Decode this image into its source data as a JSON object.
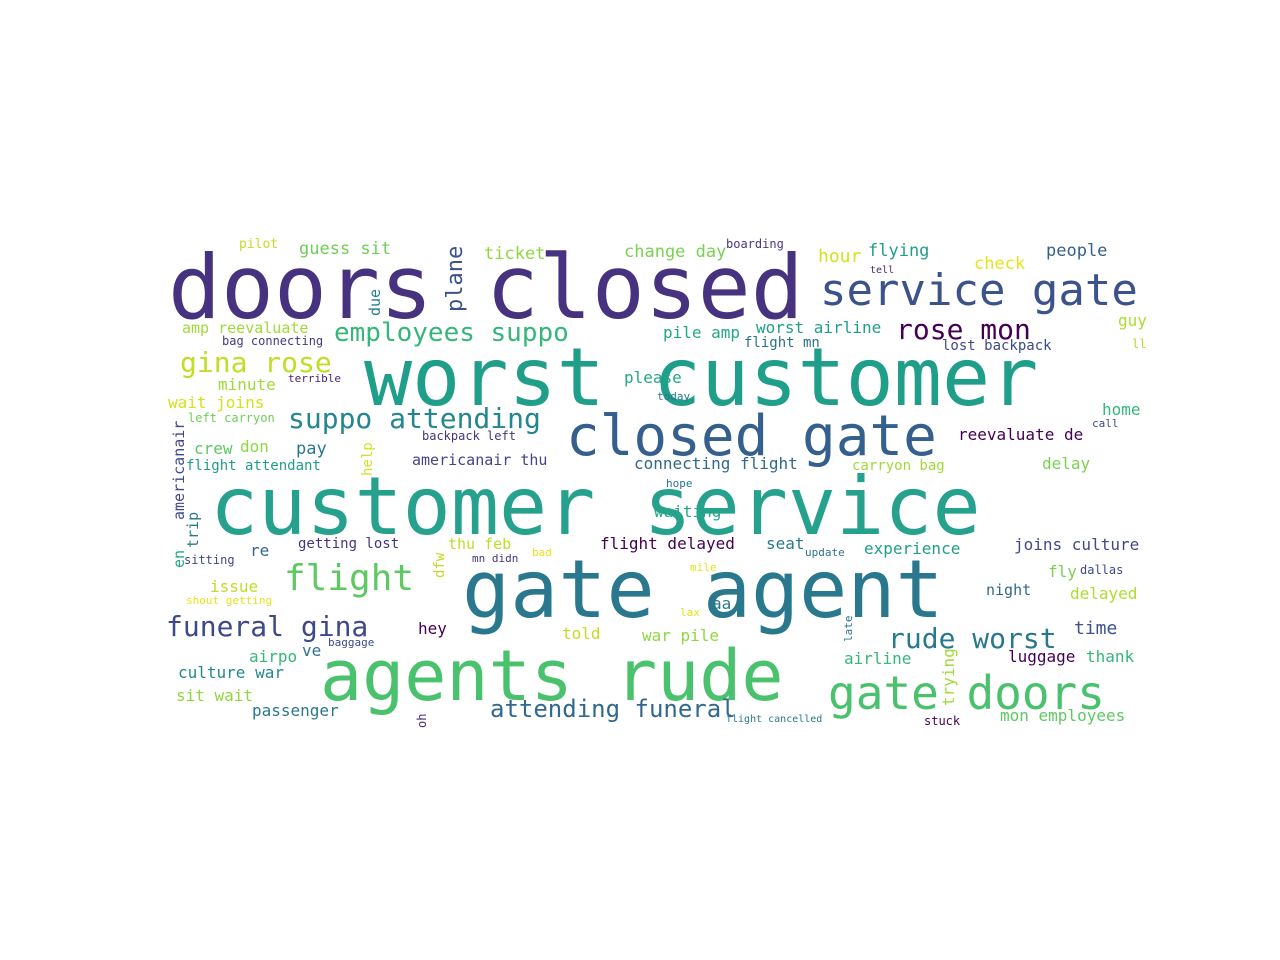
{
  "words": [
    {
      "text": "doors closed",
      "color": "#46327e"
    },
    {
      "text": "worst customer",
      "color": "#1f9e89"
    },
    {
      "text": "customer service",
      "color": "#25a18e"
    },
    {
      "text": "gate agent",
      "color": "#2a788e"
    },
    {
      "text": "agents rude",
      "color": "#4ac16d"
    },
    {
      "text": "closed gate",
      "color": "#355f8d"
    },
    {
      "text": "service gate",
      "color": "#3b528b"
    },
    {
      "text": "gate doors",
      "color": "#4ac16d"
    },
    {
      "text": "flight",
      "color": "#5ec962"
    },
    {
      "text": "funeral gina",
      "color": "#3e4989"
    },
    {
      "text": "suppo attending",
      "color": "#24868e"
    },
    {
      "text": "employees suppo",
      "color": "#35b779"
    },
    {
      "text": "gina rose",
      "color": "#bddf26"
    },
    {
      "text": "rose mon",
      "color": "#440154"
    },
    {
      "text": "rude worst",
      "color": "#2a788e"
    },
    {
      "text": "attending funeral",
      "color": "#31688e"
    },
    {
      "text": "plane",
      "color": "#3b528b"
    },
    {
      "text": "pilot",
      "color": "#bddf26"
    },
    {
      "text": "guess sit",
      "color": "#6ece58"
    },
    {
      "text": "ticket",
      "color": "#90d743"
    },
    {
      "text": "change day",
      "color": "#7ad151"
    },
    {
      "text": "boarding",
      "color": "#443983"
    },
    {
      "text": "hour",
      "color": "#d2e21b"
    },
    {
      "text": "flying",
      "color": "#1f9e89"
    },
    {
      "text": "tell",
      "color": "#482878"
    },
    {
      "text": "check",
      "color": "#e5e419"
    },
    {
      "text": "people",
      "color": "#355f8d"
    },
    {
      "text": "amp reevaluate",
      "color": "#a0da39"
    },
    {
      "text": "bag connecting",
      "color": "#443983"
    },
    {
      "text": "due",
      "color": "#277f8e"
    },
    {
      "text": "pile amp",
      "color": "#22a884"
    },
    {
      "text": "worst airline",
      "color": "#1f9e89"
    },
    {
      "text": "flight mn",
      "color": "#2c728e"
    },
    {
      "text": "lost backpack",
      "color": "#3e4989"
    },
    {
      "text": "guy",
      "color": "#addc30"
    },
    {
      "text": "ll",
      "color": "#addc30"
    },
    {
      "text": "minute",
      "color": "#a0da39"
    },
    {
      "text": "terrible",
      "color": "#481f70"
    },
    {
      "text": "please",
      "color": "#22a884"
    },
    {
      "text": "today",
      "color": "#2a788e"
    },
    {
      "text": "wait joins",
      "color": "#d2e21b"
    },
    {
      "text": "left carryon",
      "color": "#6ece58"
    },
    {
      "text": "home",
      "color": "#35b779"
    },
    {
      "text": "call",
      "color": "#3e4989"
    },
    {
      "text": "americanair",
      "color": "#3e4989"
    },
    {
      "text": "backpack left",
      "color": "#46337f"
    },
    {
      "text": "reevaluate de",
      "color": "#440154"
    },
    {
      "text": "crew",
      "color": "#5ec962"
    },
    {
      "text": "don",
      "color": "#90d743"
    },
    {
      "text": "pay",
      "color": "#2a788e"
    },
    {
      "text": "help",
      "color": "#d2e21b"
    },
    {
      "text": "flight attendant",
      "color": "#1f9e89"
    },
    {
      "text": "americanair thu",
      "color": "#414487"
    },
    {
      "text": "connecting flight",
      "color": "#31688e"
    },
    {
      "text": "carryon bag",
      "color": "#a0da39"
    },
    {
      "text": "delay",
      "color": "#7ad151"
    },
    {
      "text": "hope",
      "color": "#2c728e"
    },
    {
      "text": "trip",
      "color": "#2a788e"
    },
    {
      "text": "waiting",
      "color": "#22a884"
    },
    {
      "text": "en",
      "color": "#22a884"
    },
    {
      "text": "sitting",
      "color": "#3e4989"
    },
    {
      "text": "re",
      "color": "#31688e"
    },
    {
      "text": "getting lost",
      "color": "#46337f"
    },
    {
      "text": "thu feb",
      "color": "#bddf26"
    },
    {
      "text": "dfw",
      "color": "#bddf26"
    },
    {
      "text": "mn didn",
      "color": "#46327e"
    },
    {
      "text": "bad",
      "color": "#e5e419"
    },
    {
      "text": "flight delayed",
      "color": "#440154"
    },
    {
      "text": "seat",
      "color": "#2a788e"
    },
    {
      "text": "update",
      "color": "#2c728e"
    },
    {
      "text": "experience",
      "color": "#1f9e89"
    },
    {
      "text": "joins culture",
      "color": "#3e4989"
    },
    {
      "text": "dallas",
      "color": "#3e4989"
    },
    {
      "text": "fly",
      "color": "#7ad151"
    },
    {
      "text": "issue",
      "color": "#bddf26"
    },
    {
      "text": "shout getting",
      "color": "#e5e419"
    },
    {
      "text": "mile",
      "color": "#e5e419"
    },
    {
      "text": "aa",
      "color": "#2a788e"
    },
    {
      "text": "night",
      "color": "#31688e"
    },
    {
      "text": "delayed",
      "color": "#addc30"
    },
    {
      "text": "lax",
      "color": "#e5e419"
    },
    {
      "text": "late",
      "color": "#2c728e"
    },
    {
      "text": "hey",
      "color": "#440154"
    },
    {
      "text": "told",
      "color": "#bddf26"
    },
    {
      "text": "war pile",
      "color": "#90d743"
    },
    {
      "text": "time",
      "color": "#3b528b"
    },
    {
      "text": "airpo",
      "color": "#35b779"
    },
    {
      "text": "ve",
      "color": "#2c728e"
    },
    {
      "text": "baggage",
      "color": "#3e4989"
    },
    {
      "text": "culture war",
      "color": "#23898e"
    },
    {
      "text": "airline",
      "color": "#35b779"
    },
    {
      "text": "trying",
      "color": "#a0da39"
    },
    {
      "text": "luggage",
      "color": "#440154"
    },
    {
      "text": "thank",
      "color": "#35b779"
    },
    {
      "text": "sit wait",
      "color": "#90d743"
    },
    {
      "text": "passenger",
      "color": "#2a788e"
    },
    {
      "text": "oh",
      "color": "#482878"
    },
    {
      "text": "flight cancelled",
      "color": "#2a788e"
    },
    {
      "text": "stuck",
      "color": "#440154"
    },
    {
      "text": "mon employees",
      "color": "#5ec962"
    }
  ]
}
